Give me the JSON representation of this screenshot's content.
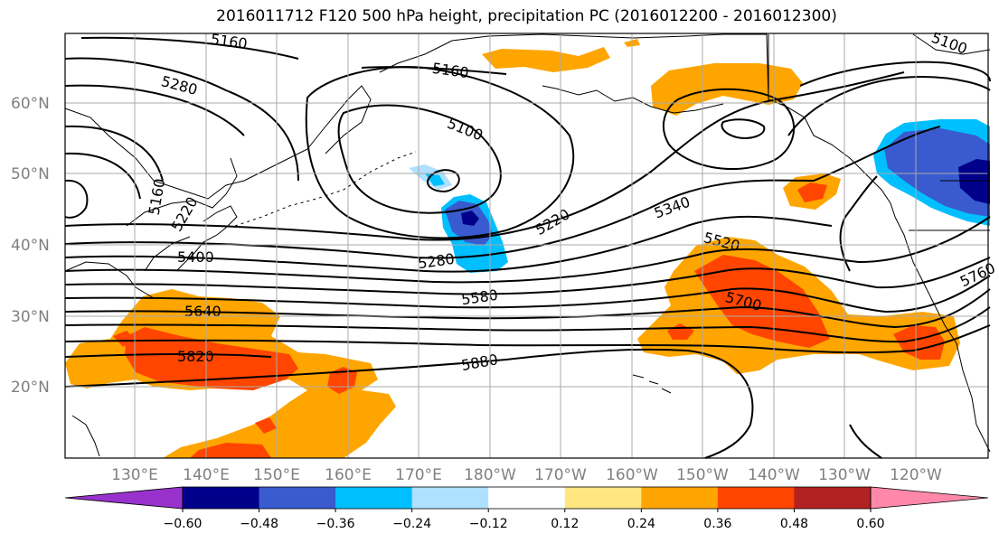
{
  "title": "2016011712 F120 500 hPa height, precipitation PC (2016012200 - 2016012300)",
  "latitude_labels": [
    "60°N",
    "50°N",
    "40°N",
    "30°N",
    "20°N"
  ],
  "longitude_labels": [
    "130°E",
    "140°E",
    "150°E",
    "160°E",
    "170°E",
    "180°W",
    "170°W",
    "160°W",
    "150°W",
    "140°W",
    "130°W",
    "120°W"
  ],
  "contour_labels": [
    "5160",
    "5160",
    "5100",
    "5100",
    "5280",
    "5160",
    "5220",
    "5400",
    "5640",
    "5820",
    "5280",
    "5220",
    "5580",
    "5880",
    "5340",
    "5520",
    "5700",
    "5760"
  ],
  "colorbar": {
    "tick_labels": [
      "−0.60",
      "−0.48",
      "−0.36",
      "−0.24",
      "−0.12",
      "0.12",
      "0.24",
      "0.36",
      "0.48",
      "0.60"
    ],
    "colors": [
      "#9932cc",
      "#00008b",
      "#3a5bcf",
      "#00bfff",
      "#b0e0ff",
      "#ffffff",
      "#ffe680",
      "#ffa500",
      "#ff4500",
      "#b22222",
      "#ff88aa"
    ]
  },
  "colors": {
    "land_outline": "#000000",
    "grid": "#aaaaaa",
    "axis_label": "#808080"
  }
}
